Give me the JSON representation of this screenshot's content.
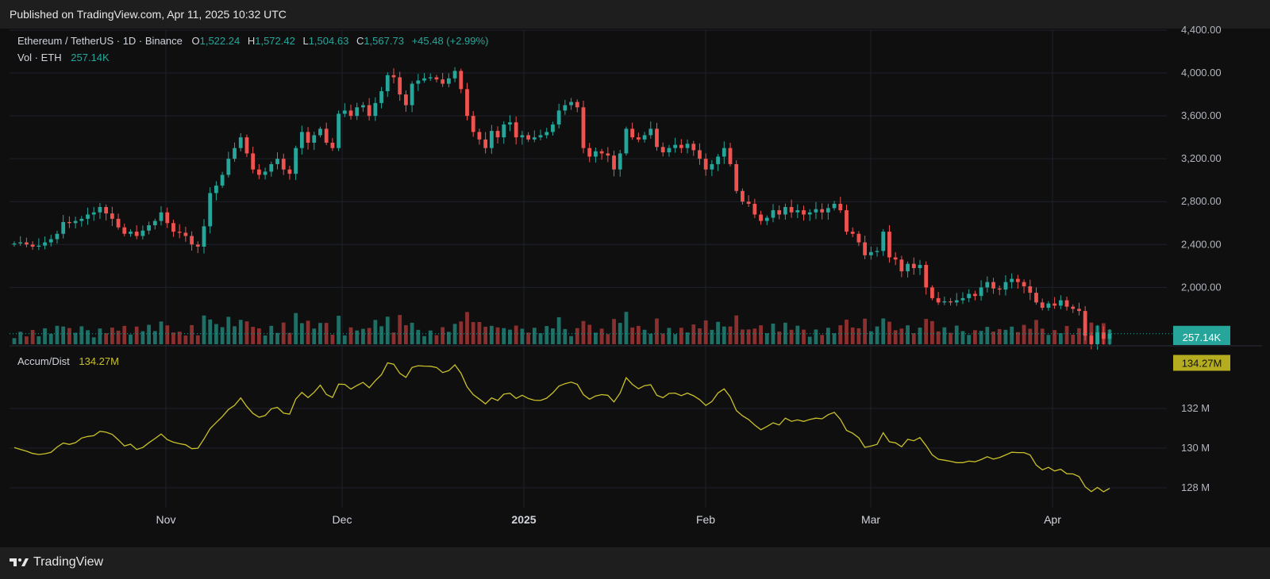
{
  "header": {
    "published": "Published on TradingView.com, Apr 11, 2025 10:32 UTC"
  },
  "legend": {
    "symbol": "Ethereum / TetherUS · 1D · Binance",
    "o_label": "O",
    "o_value": "1,522.24",
    "h_label": "H",
    "h_value": "1,572.42",
    "l_label": "L",
    "l_value": "1,504.63",
    "c_label": "C",
    "c_value": "1,567.73",
    "change": "+45.48 (+2.99%)",
    "vol_label": "Vol · ETH",
    "vol_value": "257.14K",
    "ad_label": "Accum/Dist",
    "ad_value": "134.27M"
  },
  "footer": {
    "brand": "TradingView"
  },
  "colors": {
    "up": "#26a69a",
    "down": "#ef5350",
    "ad_line": "#c9c02a",
    "up_vol": "#1f6f66",
    "down_vol": "#8c2f2f"
  },
  "chart_data": [
    {
      "type": "candlestick",
      "title": "Ethereum / TetherUS · 1D · Binance",
      "y_ticks": [
        "4,400.00",
        "4,000.00",
        "3,600.00",
        "3,200.00",
        "2,800.00",
        "2,400.00",
        "2,000.00"
      ],
      "x_ticks": [
        "Nov",
        "Dec",
        "2025",
        "Feb",
        "Mar",
        "Apr"
      ],
      "ylim": [
        1470,
        4400
      ],
      "last_price_label": "1,567.73",
      "closes": [
        2410,
        2420,
        2400,
        2380,
        2390,
        2420,
        2450,
        2500,
        2610,
        2600,
        2620,
        2640,
        2680,
        2700,
        2750,
        2690,
        2640,
        2560,
        2500,
        2520,
        2480,
        2530,
        2580,
        2620,
        2700,
        2600,
        2520,
        2510,
        2480,
        2400,
        2380,
        2570,
        2880,
        2950,
        3050,
        3200,
        3300,
        3400,
        3250,
        3100,
        3050,
        3080,
        3150,
        3200,
        3100,
        3060,
        3300,
        3450,
        3350,
        3420,
        3480,
        3350,
        3300,
        3620,
        3650,
        3600,
        3680,
        3700,
        3600,
        3720,
        3830,
        3980,
        3960,
        3800,
        3700,
        3900,
        3930,
        3950,
        3960,
        3940,
        3900,
        3950,
        4020,
        3850,
        3600,
        3450,
        3380,
        3300,
        3460,
        3400,
        3520,
        3540,
        3400,
        3420,
        3380,
        3400,
        3420,
        3450,
        3520,
        3650,
        3700,
        3730,
        3680,
        3300,
        3220,
        3270,
        3250,
        3230,
        3100,
        3250,
        3480,
        3400,
        3380,
        3420,
        3480,
        3310,
        3260,
        3300,
        3330,
        3300,
        3340,
        3280,
        3200,
        3100,
        3150,
        3220,
        3300,
        3150,
        2900,
        2800,
        2780,
        2680,
        2620,
        2650,
        2720,
        2680,
        2750,
        2700,
        2720,
        2680,
        2700,
        2730,
        2700,
        2740,
        2780,
        2720,
        2520,
        2500,
        2420,
        2300,
        2330,
        2340,
        2520,
        2280,
        2260,
        2150,
        2220,
        2180,
        2210,
        2000,
        1900,
        1860,
        1870,
        1860,
        1880,
        1900,
        1940,
        1920,
        2000,
        2050,
        1990,
        1980,
        2050,
        2080,
        2050,
        2010,
        1950,
        1860,
        1810,
        1850,
        1830,
        1880,
        1820,
        1800,
        1780,
        1550,
        1470,
        1580,
        1520,
        1567.73
      ],
      "volume_ylim": [
        0,
        600
      ]
    },
    {
      "type": "line",
      "title": "Accum/Dist",
      "y_ticks": [
        "132 M",
        "130 M",
        "128 M"
      ],
      "ylim": [
        127,
        135
      ],
      "last_value_label": "134.27M"
    }
  ]
}
